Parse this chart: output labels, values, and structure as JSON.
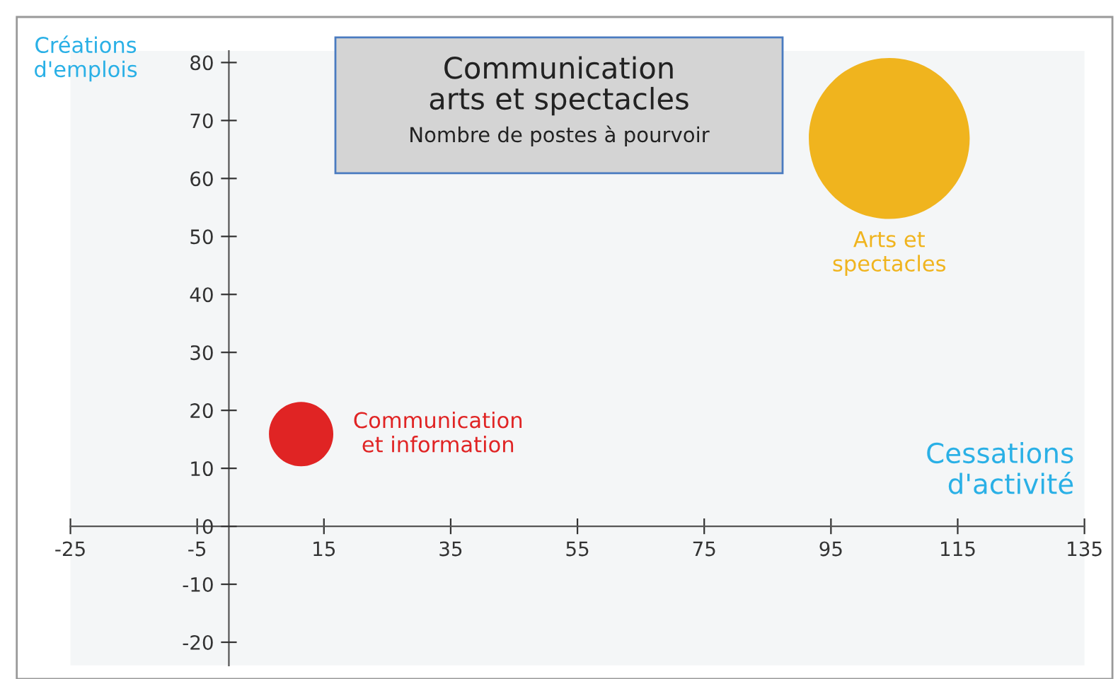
{
  "chart_data": {
    "type": "bubble",
    "title": "Communication\narts et spectacles",
    "subtitle": "Nombre de postes à pourvoir",
    "xlabel": "Cessations\nd'activité",
    "ylabel": "Créations\nd'emplois",
    "series": [
      {
        "name": "Communication\net information",
        "color": "#e02424",
        "x": [
          11.4
        ],
        "values": [
          15.9
        ],
        "sizes": [
          0.16
        ]
      },
      {
        "name": "Arts et\nspectacles",
        "color": "#f0b41e",
        "x": [
          104.2
        ],
        "values": [
          66.9
        ],
        "sizes": [
          1
        ]
      }
    ],
    "xlim": [
      -25,
      135
    ],
    "xticks": [
      -25,
      -5,
      15,
      35,
      55,
      75,
      95,
      115,
      135
    ],
    "ylim": [
      -24,
      82
    ],
    "yticks": [
      -20,
      -10,
      0,
      10,
      20,
      30,
      40,
      50,
      60,
      70,
      80
    ],
    "grid": false,
    "legend": false
  }
}
